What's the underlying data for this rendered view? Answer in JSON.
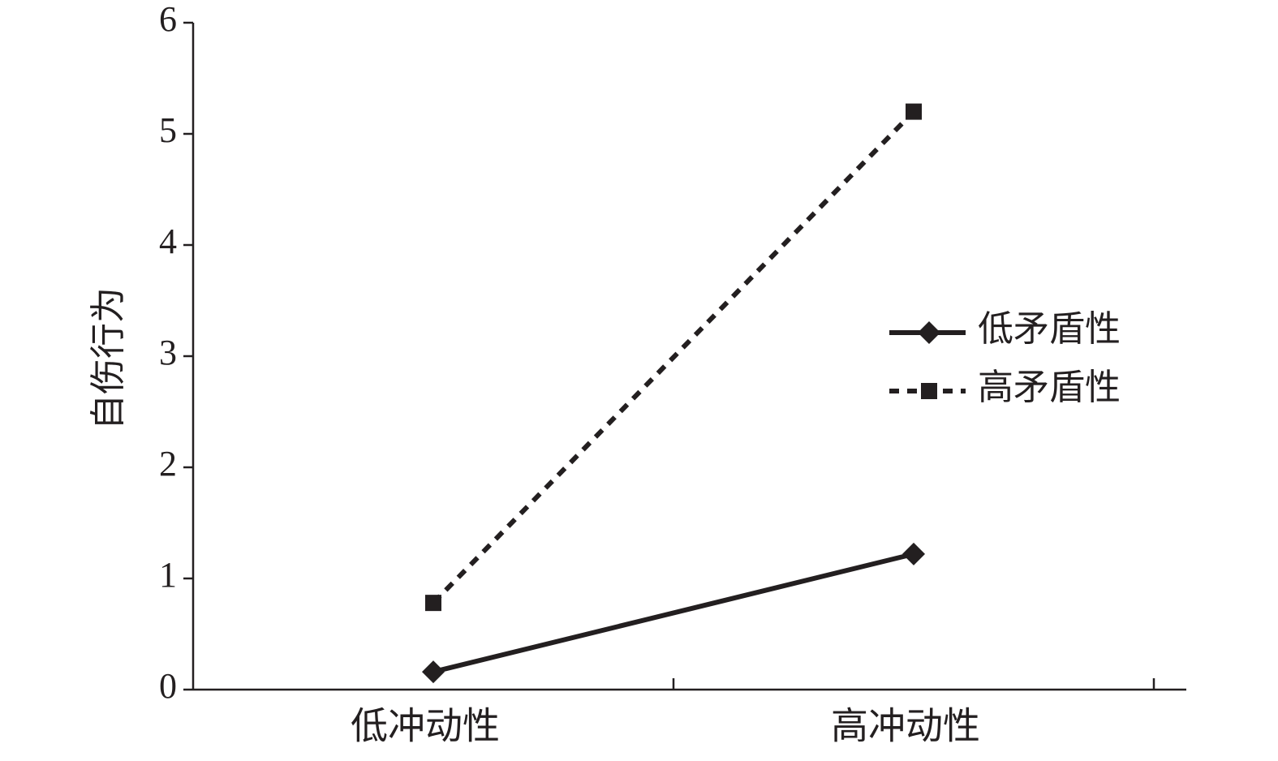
{
  "chart_data": {
    "type": "line",
    "y_label": "自伤行为",
    "categories": [
      "低冲动性",
      "高冲动性"
    ],
    "series": [
      {
        "name": "低矛盾性",
        "color": "#231f20",
        "marker": "diamond",
        "line_style": "solid",
        "values": [
          0.16,
          1.22
        ]
      },
      {
        "name": "高矛盾性",
        "color": "#231f20",
        "marker": "square",
        "line_style": "dashed",
        "values": [
          0.78,
          5.2
        ]
      }
    ],
    "ylim": [
      0,
      6
    ],
    "yticks": [
      0,
      1,
      2,
      3,
      4,
      5,
      6
    ],
    "grid": false,
    "legend": "right"
  }
}
